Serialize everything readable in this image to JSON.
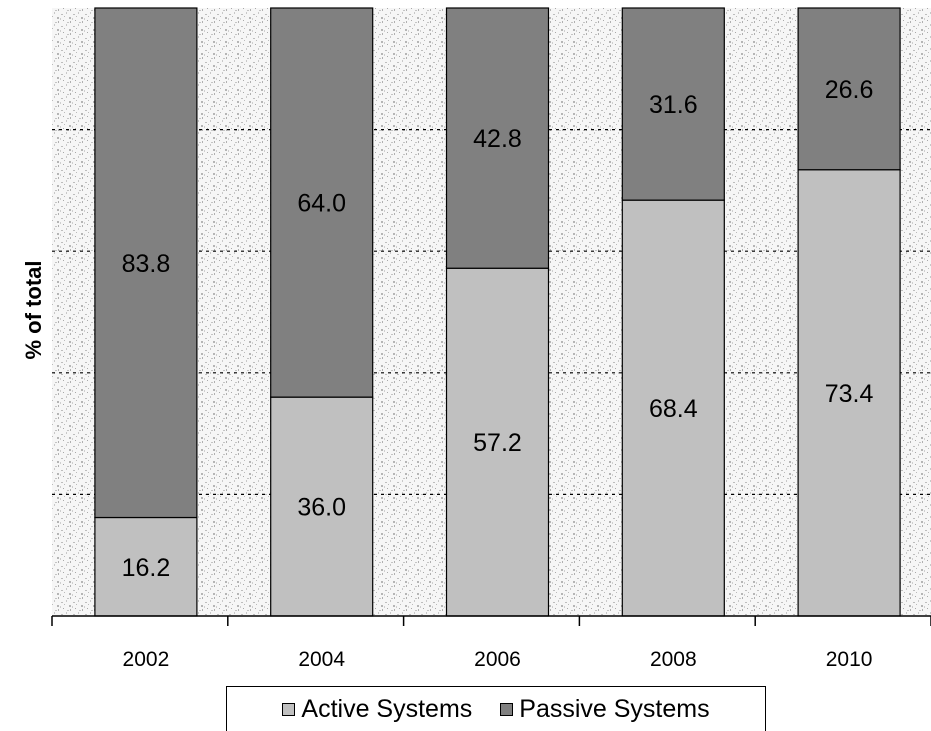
{
  "chart_data": {
    "type": "bar",
    "stacked": true,
    "categories": [
      "2002",
      "2004",
      "2006",
      "2008",
      "2010"
    ],
    "series": [
      {
        "name": "Active Systems",
        "values": [
          16.2,
          36.0,
          57.2,
          68.4,
          73.4
        ],
        "color": "#c0c0c0"
      },
      {
        "name": "Passive Systems",
        "values": [
          83.8,
          64.0,
          42.8,
          31.6,
          26.6
        ],
        "color": "#808080"
      }
    ],
    "value_labels": {
      "active": [
        "16.2",
        "36.0",
        "57.2",
        "68.4",
        "73.4"
      ],
      "passive": [
        "83.8",
        "64.0",
        "42.8",
        "31.6",
        "26.6"
      ]
    },
    "ylabel": "% of total",
    "ylim": [
      0,
      100
    ],
    "grid": "dotted horizontal",
    "legend_position": "bottom"
  },
  "legend": {
    "active_label": "Active Systems",
    "passive_label": "Passive Systems",
    "active_color": "#c0c0c0",
    "passive_color": "#808080"
  }
}
